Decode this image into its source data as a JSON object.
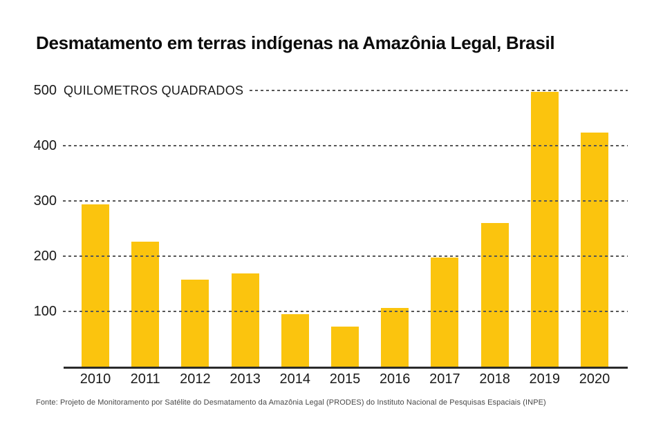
{
  "chart_data": {
    "type": "bar",
    "title": "Desmatamento em terras indígenas na Amazônia Legal, Brasil",
    "ylabel": "QUILOMETROS QUADRADOS",
    "xlabel": "",
    "categories": [
      "2010",
      "2011",
      "2012",
      "2013",
      "2014",
      "2015",
      "2016",
      "2017",
      "2018",
      "2019",
      "2020"
    ],
    "values": [
      294,
      226,
      158,
      169,
      95,
      73,
      106,
      197,
      260,
      497,
      424
    ],
    "yticks": [
      500,
      400,
      300,
      200,
      100
    ],
    "ylim": [
      0,
      500
    ],
    "grid": "horizontal-dashed",
    "legend_position": "none",
    "bar_color": "#FBC40E",
    "gridline_color": "#565656",
    "axis_color": "#2a2a2a",
    "source": "Fonte: Projeto de Monitoramento por Satélite do Desmatamento da Amazônia Legal (PRODES) do Instituto Nacional de Pesquisas Espaciais (INPE)"
  }
}
